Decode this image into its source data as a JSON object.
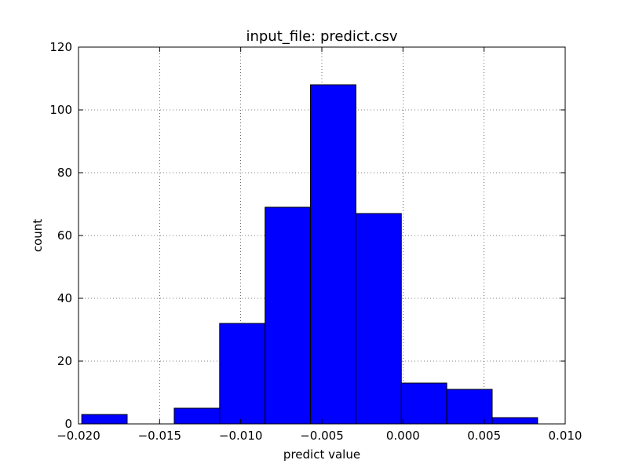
{
  "chart_data": {
    "type": "bar",
    "subtype": "histogram",
    "title": "input_file: predict.csv",
    "xlabel": "predict value",
    "ylabel": "count",
    "xlim": [
      -0.02,
      0.01
    ],
    "ylim": [
      0,
      120
    ],
    "grid": true,
    "legend": "none",
    "bar_color": "#0000ff",
    "edge_color": "#000000",
    "bins": [
      {
        "x0": -0.0198,
        "x1": -0.017,
        "count": 3
      },
      {
        "x0": -0.017,
        "x1": -0.0141,
        "count": 0
      },
      {
        "x0": -0.0141,
        "x1": -0.0113,
        "count": 5
      },
      {
        "x0": -0.0113,
        "x1": -0.0085,
        "count": 32
      },
      {
        "x0": -0.0085,
        "x1": -0.0057,
        "count": 69
      },
      {
        "x0": -0.0057,
        "x1": -0.0029,
        "count": 108
      },
      {
        "x0": -0.0029,
        "x1": -0.0001,
        "count": 67
      },
      {
        "x0": -0.0001,
        "x1": 0.0027,
        "count": 13
      },
      {
        "x0": 0.0027,
        "x1": 0.0055,
        "count": 11
      },
      {
        "x0": 0.0055,
        "x1": 0.0083,
        "count": 2
      }
    ],
    "xticks": [
      -0.02,
      -0.015,
      -0.01,
      -0.005,
      0.0,
      0.005,
      0.01
    ],
    "xtick_labels": [
      "−0.020",
      "−0.015",
      "−0.010",
      "−0.005",
      "0.000",
      "0.005",
      "0.010"
    ],
    "yticks": [
      0,
      20,
      40,
      60,
      80,
      100,
      120
    ],
    "ytick_labels": [
      "0",
      "20",
      "40",
      "60",
      "80",
      "100",
      "120"
    ]
  }
}
